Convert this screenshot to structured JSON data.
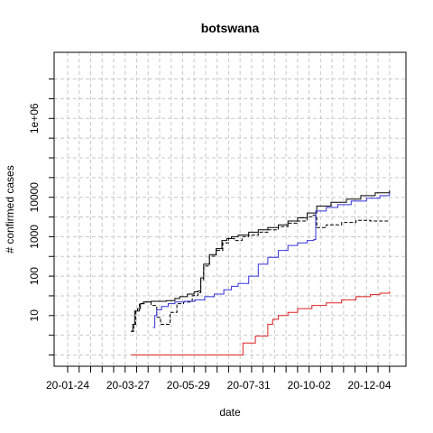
{
  "chart_data": {
    "type": "line",
    "title": "botswana",
    "xlabel": "date",
    "ylabel": "# confirmed cases",
    "y_scale": "log",
    "grid": true,
    "x_tick_labels": [
      "20-01-24",
      "20-03-27",
      "20-05-29",
      "20-07-31",
      "20-10-02",
      "20-12-04"
    ],
    "y_tick_labels": [
      "10",
      "100",
      "1000",
      "10000",
      "1e+06"
    ],
    "colors": {
      "black": "#000000",
      "blue": "#3333dd",
      "red": "#e02020",
      "grid": "#c8c8c8"
    },
    "series": [
      {
        "color": "black",
        "dash": "solid",
        "points": [
          [
            "20-03-30",
            4
          ],
          [
            "20-04-01",
            6
          ],
          [
            "20-04-03",
            13
          ],
          [
            "20-04-06",
            15
          ],
          [
            "20-04-09",
            20
          ],
          [
            "20-04-12",
            22
          ],
          [
            "20-04-20",
            23
          ],
          [
            "20-04-28",
            23
          ],
          [
            "20-05-06",
            24
          ],
          [
            "20-05-15",
            27
          ],
          [
            "20-05-20",
            30
          ],
          [
            "20-05-28",
            35
          ],
          [
            "20-06-04",
            40
          ],
          [
            "20-06-08",
            42
          ],
          [
            "20-06-11",
            90
          ],
          [
            "20-06-14",
            200
          ],
          [
            "20-06-20",
            350
          ],
          [
            "20-06-27",
            500
          ],
          [
            "20-07-03",
            800
          ],
          [
            "20-07-08",
            900
          ],
          [
            "20-07-13",
            1000
          ],
          [
            "20-07-20",
            1100
          ],
          [
            "20-07-31",
            1300
          ],
          [
            "20-08-10",
            1500
          ],
          [
            "20-08-20",
            1700
          ],
          [
            "20-08-31",
            2000
          ],
          [
            "20-09-10",
            2500
          ],
          [
            "20-09-20",
            3000
          ],
          [
            "20-09-30",
            4000
          ],
          [
            "20-10-10",
            6000
          ],
          [
            "20-10-25",
            7500
          ],
          [
            "20-11-10",
            9000
          ],
          [
            "20-11-25",
            11000
          ],
          [
            "20-12-10",
            13000
          ],
          [
            "20-12-25",
            15000
          ]
        ]
      },
      {
        "color": "black",
        "dash": "dashed",
        "points": [
          [
            "20-03-30",
            4
          ],
          [
            "20-04-02",
            6
          ],
          [
            "20-04-04",
            13
          ],
          [
            "20-04-08",
            20
          ],
          [
            "20-04-14",
            22
          ],
          [
            "20-04-20",
            18
          ],
          [
            "20-04-26",
            9
          ],
          [
            "20-04-30",
            6
          ],
          [
            "20-05-06",
            6
          ],
          [
            "20-05-10",
            12
          ],
          [
            "20-05-17",
            20
          ],
          [
            "20-05-24",
            22
          ],
          [
            "20-06-02",
            32
          ],
          [
            "20-06-08",
            38
          ],
          [
            "20-06-11",
            80
          ],
          [
            "20-06-14",
            180
          ],
          [
            "20-06-20",
            320
          ],
          [
            "20-06-27",
            450
          ],
          [
            "20-07-04",
            700
          ],
          [
            "20-07-10",
            900
          ],
          [
            "20-07-16",
            800
          ],
          [
            "20-07-24",
            1000
          ],
          [
            "20-07-31",
            1100
          ],
          [
            "20-08-10",
            1300
          ],
          [
            "20-08-20",
            1500
          ],
          [
            "20-08-31",
            1800
          ],
          [
            "20-09-10",
            2200
          ],
          [
            "20-09-20",
            2500
          ],
          [
            "20-09-30",
            3200
          ],
          [
            "20-10-06",
            3500
          ],
          [
            "20-10-10",
            1700
          ],
          [
            "20-10-20",
            2000
          ],
          [
            "20-11-05",
            2300
          ],
          [
            "20-11-20",
            2600
          ],
          [
            "20-12-05",
            2500
          ],
          [
            "20-12-25",
            2500
          ]
        ]
      },
      {
        "color": "blue",
        "dash": "solid",
        "points": [
          [
            "20-04-22",
            5
          ],
          [
            "20-04-24",
            10
          ],
          [
            "20-04-26",
            14
          ],
          [
            "20-05-01",
            17
          ],
          [
            "20-05-08",
            20
          ],
          [
            "20-05-15",
            22
          ],
          [
            "20-05-25",
            23
          ],
          [
            "20-06-05",
            25
          ],
          [
            "20-06-15",
            30
          ],
          [
            "20-06-25",
            35
          ],
          [
            "20-07-05",
            45
          ],
          [
            "20-07-13",
            55
          ],
          [
            "20-07-20",
            65
          ],
          [
            "20-07-31",
            100
          ],
          [
            "20-08-10",
            200
          ],
          [
            "20-08-20",
            300
          ],
          [
            "20-08-31",
            450
          ],
          [
            "20-09-10",
            600
          ],
          [
            "20-09-20",
            700
          ],
          [
            "20-09-30",
            800
          ],
          [
            "20-10-07",
            850
          ],
          [
            "20-10-09",
            4500
          ],
          [
            "20-10-20",
            5500
          ],
          [
            "20-11-01",
            6500
          ],
          [
            "20-11-15",
            8000
          ],
          [
            "20-12-01",
            9500
          ],
          [
            "20-12-15",
            11000
          ],
          [
            "20-12-25",
            13000
          ]
        ]
      },
      {
        "color": "red",
        "dash": "solid",
        "points": [
          [
            "20-03-30",
            1
          ],
          [
            "20-07-23",
            1
          ],
          [
            "20-07-25",
            2
          ],
          [
            "20-08-05",
            2
          ],
          [
            "20-08-07",
            3
          ],
          [
            "20-08-18",
            3
          ],
          [
            "20-08-20",
            6
          ],
          [
            "20-08-25",
            8
          ],
          [
            "20-08-31",
            10
          ],
          [
            "20-09-10",
            12
          ],
          [
            "20-09-20",
            15
          ],
          [
            "20-10-05",
            18
          ],
          [
            "20-10-20",
            21
          ],
          [
            "20-11-05",
            25
          ],
          [
            "20-11-20",
            30
          ],
          [
            "20-12-05",
            34
          ],
          [
            "20-12-15",
            37
          ],
          [
            "20-12-25",
            41
          ]
        ]
      }
    ]
  }
}
